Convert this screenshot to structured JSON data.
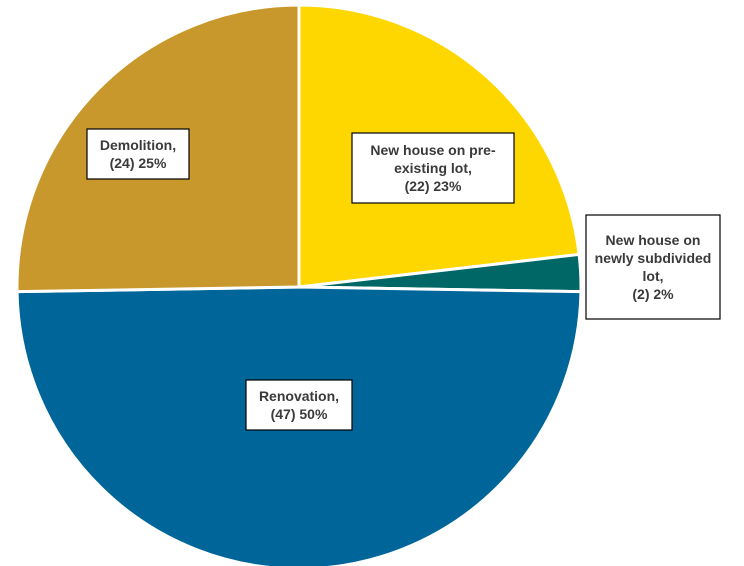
{
  "chart_data": {
    "type": "pie",
    "title": "",
    "slices": [
      {
        "category": "New house on pre-existing lot",
        "count": 22,
        "percent": 23,
        "color": "#FFD700",
        "label_lines": [
          "New house on pre-",
          "existing lot,",
          "(22) 23%"
        ]
      },
      {
        "category": "New house on newly subdivided lot",
        "count": 2,
        "percent": 2,
        "color": "#006666",
        "label_lines": [
          "New house on",
          "newly subdivided",
          "lot,",
          "(2) 2%"
        ]
      },
      {
        "category": "Renovation",
        "count": 47,
        "percent": 50,
        "color": "#006699",
        "label_lines": [
          "Renovation,",
          "(47) 50%"
        ]
      },
      {
        "category": "Demolition",
        "count": 24,
        "percent": 25,
        "color": "#C9982C",
        "label_lines": [
          "Demolition,",
          "(24) 25%"
        ]
      }
    ]
  }
}
